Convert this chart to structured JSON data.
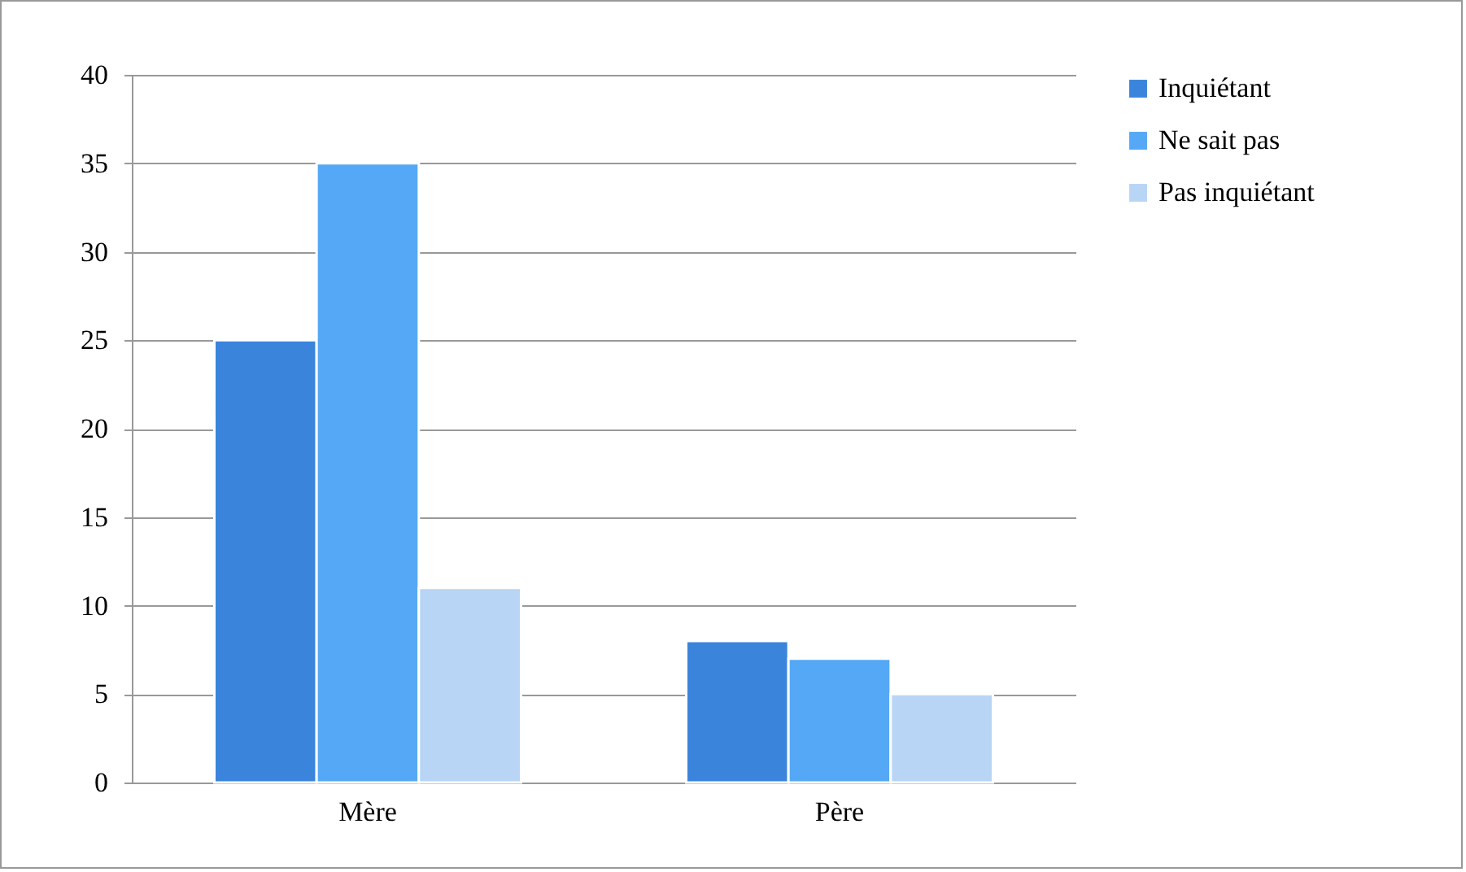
{
  "chart_data": {
    "type": "bar",
    "categories": [
      "Mère",
      "Père"
    ],
    "series": [
      {
        "name": "Inquiétant",
        "color": "#3a84dc",
        "values": [
          25,
          8
        ]
      },
      {
        "name": "Ne sait pas",
        "color": "#55a8f5",
        "values": [
          35,
          7
        ]
      },
      {
        "name": "Pas inquiétant",
        "color": "#b8d5f5",
        "values": [
          11,
          5
        ]
      }
    ],
    "ylim": [
      0,
      40
    ],
    "yticks": [
      0,
      5,
      10,
      15,
      20,
      25,
      30,
      35,
      40
    ],
    "grid": "y",
    "legend": "right"
  }
}
